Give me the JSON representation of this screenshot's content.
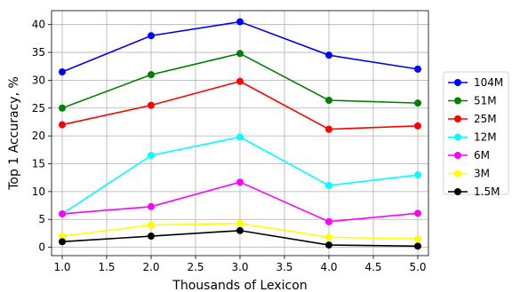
{
  "chart_data": {
    "type": "line",
    "x": [
      1.0,
      2.0,
      3.0,
      4.0,
      5.0
    ],
    "xlabel": "Thousands of Lexicon",
    "ylabel": "Top 1 Accuracy, %",
    "xlim": [
      0.88,
      5.12
    ],
    "ylim": [
      -1.5,
      42.5
    ],
    "xticks": [
      "1.0",
      "1.5",
      "2.0",
      "2.5",
      "3.0",
      "3.5",
      "4.0",
      "4.5",
      "5.0"
    ],
    "yticks": [
      "0",
      "5",
      "10",
      "15",
      "20",
      "25",
      "30",
      "35",
      "40"
    ],
    "grid": true,
    "legend_position": "right",
    "series": [
      {
        "name": "104M",
        "color": "#0000ff",
        "values": [
          31.5,
          38.0,
          40.5,
          34.5,
          32.0
        ]
      },
      {
        "name": "51M",
        "color": "#008000",
        "values": [
          25.0,
          31.0,
          34.8,
          26.4,
          25.9
        ]
      },
      {
        "name": "25M",
        "color": "#ff0000",
        "values": [
          22.0,
          25.5,
          29.8,
          21.2,
          21.8
        ]
      },
      {
        "name": "12M",
        "color": "#00ffff",
        "values": [
          6.0,
          16.5,
          19.8,
          11.1,
          13.0
        ]
      },
      {
        "name": "6M",
        "color": "#ff00ff",
        "values": [
          6.0,
          7.3,
          11.7,
          4.6,
          6.1
        ]
      },
      {
        "name": "3M",
        "color": "#ffff00",
        "values": [
          2.0,
          4.0,
          4.3,
          1.8,
          1.5
        ]
      },
      {
        "name": "1.5M",
        "color": "#000000",
        "values": [
          1.0,
          2.0,
          3.0,
          0.4,
          0.2
        ]
      }
    ]
  }
}
